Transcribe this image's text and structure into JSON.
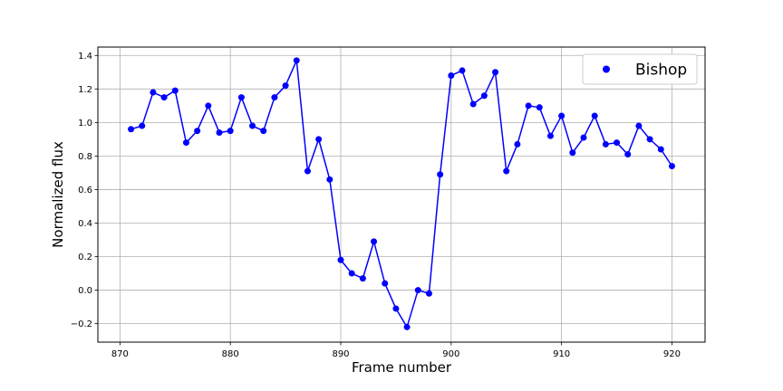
{
  "chart_data": {
    "type": "line",
    "title": "",
    "xlabel": "Frame number",
    "ylabel": "Normalized flux",
    "xlim": [
      868,
      923
    ],
    "ylim": [
      -0.31,
      1.45
    ],
    "xticks": [
      870,
      880,
      890,
      900,
      910,
      920
    ],
    "xtick_labels": [
      "870",
      "880",
      "890",
      "900",
      "910",
      "920"
    ],
    "yticks": [
      -0.2,
      0.0,
      0.2,
      0.4,
      0.6,
      0.8,
      1.0,
      1.2,
      1.4
    ],
    "ytick_labels": [
      "−0.2",
      "0.0",
      "0.2",
      "0.4",
      "0.6",
      "0.8",
      "1.0",
      "1.2",
      "1.4"
    ],
    "grid": true,
    "legend_position": "top-right",
    "series": [
      {
        "name": "Bishop",
        "color": "#0000ff",
        "marker": "circle",
        "x": [
          871,
          872,
          873,
          874,
          875,
          876,
          877,
          878,
          879,
          880,
          881,
          882,
          883,
          884,
          885,
          886,
          887,
          888,
          889,
          890,
          891,
          892,
          893,
          894,
          895,
          896,
          897,
          898,
          899,
          900,
          901,
          902,
          903,
          904,
          905,
          906,
          907,
          908,
          909,
          910,
          911,
          912,
          913,
          914,
          915,
          916,
          917,
          918,
          919,
          920
        ],
        "y": [
          0.96,
          0.98,
          1.18,
          1.15,
          1.19,
          0.88,
          0.95,
          1.1,
          0.94,
          0.95,
          1.15,
          0.98,
          0.95,
          1.15,
          1.22,
          1.37,
          0.71,
          0.9,
          0.66,
          0.18,
          0.1,
          0.07,
          0.29,
          0.04,
          -0.11,
          -0.22,
          0.0,
          -0.02,
          0.69,
          1.28,
          1.31,
          1.11,
          1.16,
          1.3,
          0.71,
          0.87,
          1.1,
          1.09,
          0.92,
          1.04,
          0.82,
          0.91,
          1.04,
          0.87,
          0.88,
          0.81,
          0.98,
          0.9,
          0.84,
          0.74
        ]
      }
    ]
  }
}
